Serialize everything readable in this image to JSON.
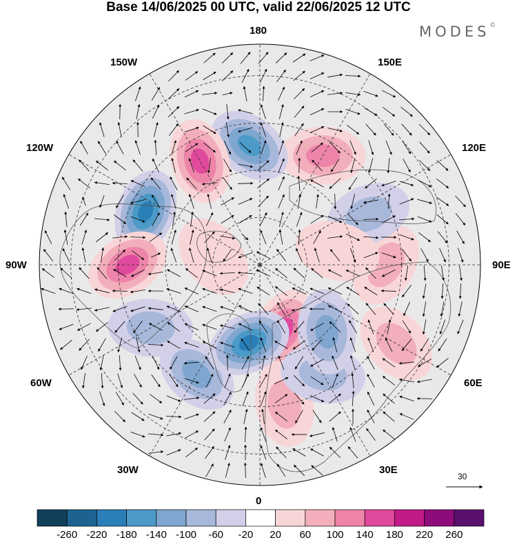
{
  "title": "Base 14/06/2025 00 UTC, valid 22/06/2025 12 UTC",
  "brand": "MODES",
  "brand_mark": "©",
  "longitude_labels": {
    "top": "180",
    "bottom": "0",
    "left": "90W",
    "right": "90E",
    "upper_left_1": "150W",
    "upper_left_2": "120W",
    "upper_right_1": "150E",
    "upper_right_2": "120E",
    "lower_left_1": "60W",
    "lower_left_2": "30W",
    "lower_right_1": "60E",
    "lower_right_2": "30E"
  },
  "reference_vector": {
    "label": "30"
  },
  "colorbar": {
    "ticks": [
      "-260",
      "-220",
      "-180",
      "-140",
      "-100",
      "-60",
      "-20",
      "20",
      "60",
      "100",
      "140",
      "180",
      "220",
      "260"
    ],
    "colors": [
      "#123f5a",
      "#1c6391",
      "#2a7fb8",
      "#4b9ac8",
      "#7ea6cf",
      "#a8b8da",
      "#d2d0e8",
      "#ffffff",
      "#f8d6d8",
      "#f2aeba",
      "#ee84aa",
      "#e0499c",
      "#c21a86",
      "#8e0c7a",
      "#59106e"
    ]
  },
  "map": {
    "background_color": "#e9e9e9",
    "anomalies": [
      {
        "lon": 150,
        "lat": 50,
        "value": 120
      },
      {
        "lon": -175,
        "lat": 52,
        "value": -170
      },
      {
        "lon": -150,
        "lat": 52,
        "value": 140
      },
      {
        "lon": -115,
        "lat": 50,
        "value": -180
      },
      {
        "lon": -90,
        "lat": 48,
        "value": 150
      },
      {
        "lon": -60,
        "lat": 50,
        "value": -90
      },
      {
        "lon": -30,
        "lat": 50,
        "value": -100
      },
      {
        "lon": 10,
        "lat": 45,
        "value": 60
      },
      {
        "lon": 20,
        "lat": 68,
        "value": 170
      },
      {
        "lon": -8,
        "lat": 65,
        "value": -180
      },
      {
        "lon": 30,
        "lat": 50,
        "value": -80
      },
      {
        "lon": 60,
        "lat": 40,
        "value": 70
      },
      {
        "lon": 45,
        "lat": 60,
        "value": -110
      },
      {
        "lon": 90,
        "lat": 50,
        "value": 70
      },
      {
        "lon": 115,
        "lat": 52,
        "value": -90
      },
      {
        "lon": 100,
        "lat": 65,
        "value": 50
      },
      {
        "lon": -100,
        "lat": 75,
        "value": 40
      }
    ]
  }
}
